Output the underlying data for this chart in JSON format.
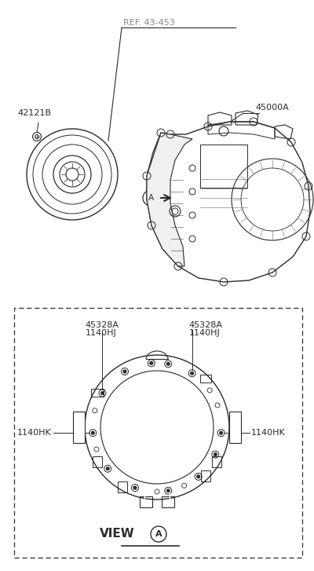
{
  "bg_color": "#ffffff",
  "line_color": "#2a2a2a",
  "gray_color": "#888888",
  "fig_width": 4.0,
  "fig_height": 7.27,
  "dpi": 100,
  "labels": {
    "part_42121B": "42121B",
    "ref_43453": "REF. 43-453",
    "part_45000A": "45000A",
    "label_A_circle": "A",
    "label_45328A_left": "45328A",
    "label_45328A_right": "45328A",
    "label_1140HJ_left": "1140HJ",
    "label_1140HJ_right": "1140HJ",
    "label_1140HK_left": "1140HK",
    "label_1140HK_right": "1140HK",
    "view_label": "VIEW",
    "view_circle": "A"
  }
}
